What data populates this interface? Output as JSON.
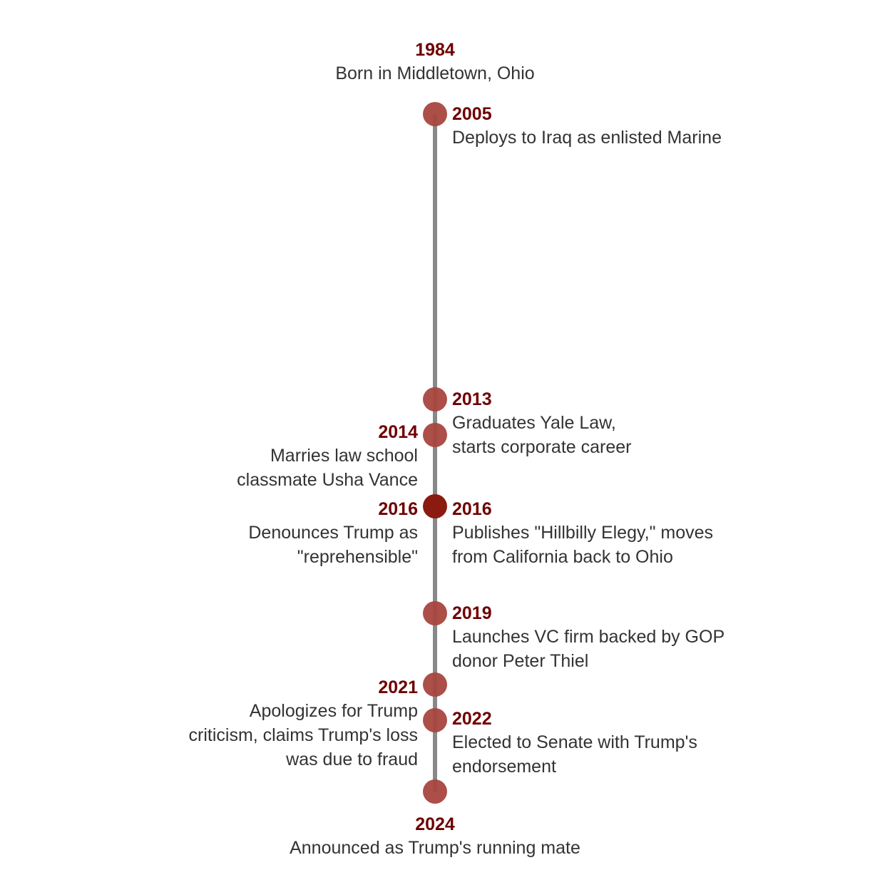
{
  "timeline": {
    "events": [
      {
        "year": "1984",
        "text": "Born in Middletown, Ohio",
        "side": "top"
      },
      {
        "year": "2005",
        "text": "Deploys to Iraq as enlisted Marine",
        "side": "right"
      },
      {
        "year": "2013",
        "text": "Graduates Yale Law,\nstarts corporate career",
        "side": "right"
      },
      {
        "year": "2014",
        "text": "Marries law school\nclassmate Usha Vance",
        "side": "left"
      },
      {
        "year": "2016",
        "text": "Denounces Trump as\n\"reprehensible\"",
        "side": "left"
      },
      {
        "year": "2016",
        "text": "Publishes \"Hillbilly Elegy,\" moves\nfrom California back to Ohio",
        "side": "right"
      },
      {
        "year": "2019",
        "text": "Launches VC firm backed by GOP\ndonor Peter Thiel",
        "side": "right"
      },
      {
        "year": "2021",
        "text": "Apologizes for Trump\ncriticism, claims Trump's loss\nwas due to fraud",
        "side": "left"
      },
      {
        "year": "2022",
        "text": "Elected to Senate with Trump's\nendorsement",
        "side": "right"
      },
      {
        "year": "2024",
        "text": "Announced as Trump's running mate",
        "side": "bottom"
      }
    ],
    "colors": {
      "line": "#888888",
      "dot": "#a8463f",
      "dot_highlight": "#8b1a10",
      "year": "#6e0000",
      "text": "#333333"
    }
  }
}
